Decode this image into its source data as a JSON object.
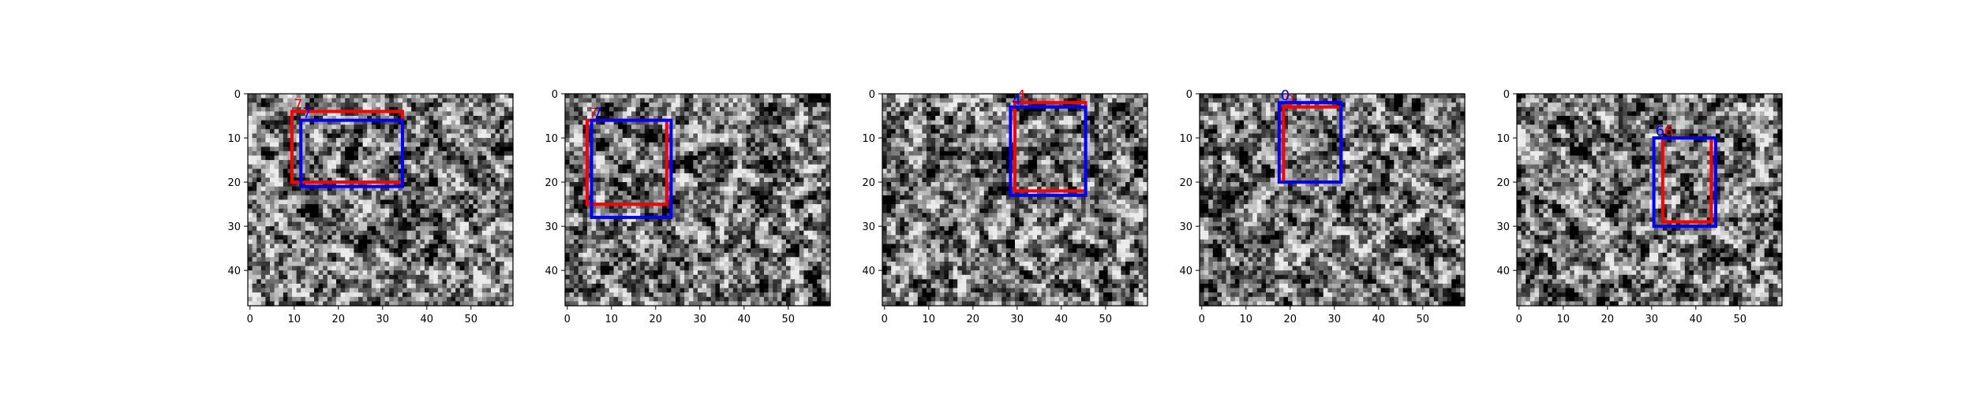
{
  "chart_data": [
    {
      "type": "heatmap",
      "xlim": [
        0,
        60
      ],
      "ylim": [
        48,
        0
      ],
      "xticks": [
        0,
        10,
        20,
        30,
        40,
        50
      ],
      "yticks": [
        0,
        10,
        20,
        30,
        40
      ],
      "boxes": [
        {
          "name": "red",
          "color": "#ff0000",
          "label": "7",
          "x0": 10,
          "y0": 4,
          "x1": 35,
          "y1": 20
        },
        {
          "name": "blue",
          "color": "#0000ff",
          "label": "7",
          "x0": 12,
          "y0": 6,
          "x1": 35,
          "y1": 21
        }
      ]
    },
    {
      "type": "heatmap",
      "xlim": [
        0,
        60
      ],
      "ylim": [
        48,
        0
      ],
      "xticks": [
        0,
        10,
        20,
        30,
        40,
        50
      ],
      "yticks": [
        0,
        10,
        20,
        30,
        40
      ],
      "boxes": [
        {
          "name": "red",
          "color": "#ff0000",
          "label": "7",
          "x0": 5,
          "y0": 6,
          "x1": 23,
          "y1": 25
        },
        {
          "name": "blue",
          "color": "#0000ff",
          "label": "7",
          "x0": 6,
          "y0": 6,
          "x1": 24,
          "y1": 28
        }
      ]
    },
    {
      "type": "heatmap",
      "xlim": [
        0,
        60
      ],
      "ylim": [
        48,
        0
      ],
      "xticks": [
        0,
        10,
        20,
        30,
        40,
        50
      ],
      "yticks": [
        0,
        10,
        20,
        30,
        40
      ],
      "boxes": [
        {
          "name": "red",
          "color": "#ff0000",
          "label": "4",
          "x0": 30,
          "y0": 2,
          "x1": 46,
          "y1": 22
        },
        {
          "name": "blue",
          "color": "#0000ff",
          "label": "4",
          "x0": 29,
          "y0": 3,
          "x1": 46,
          "y1": 23
        }
      ]
    },
    {
      "type": "heatmap",
      "xlim": [
        0,
        60
      ],
      "ylim": [
        48,
        0
      ],
      "xticks": [
        0,
        10,
        20,
        30,
        40,
        50
      ],
      "yticks": [
        0,
        10,
        20,
        30,
        40
      ],
      "boxes": [
        {
          "name": "red",
          "color": "#ff0000",
          "label": "0",
          "x0": 19,
          "y0": 3,
          "x1": 32,
          "y1": 20
        },
        {
          "name": "blue",
          "color": "#0000ff",
          "label": "0",
          "x0": 18,
          "y0": 2,
          "x1": 32,
          "y1": 20
        }
      ]
    },
    {
      "type": "heatmap",
      "xlim": [
        0,
        60
      ],
      "ylim": [
        48,
        0
      ],
      "xticks": [
        0,
        10,
        20,
        30,
        40,
        50
      ],
      "yticks": [
        0,
        10,
        20,
        30,
        40
      ],
      "boxes": [
        {
          "name": "red",
          "color": "#ff0000",
          "label": "6",
          "x0": 33,
          "y0": 10,
          "x1": 44,
          "y1": 29
        },
        {
          "name": "blue",
          "color": "#0000ff",
          "label": "6",
          "x0": 31,
          "y0": 10,
          "x1": 45,
          "y1": 30
        }
      ]
    }
  ]
}
